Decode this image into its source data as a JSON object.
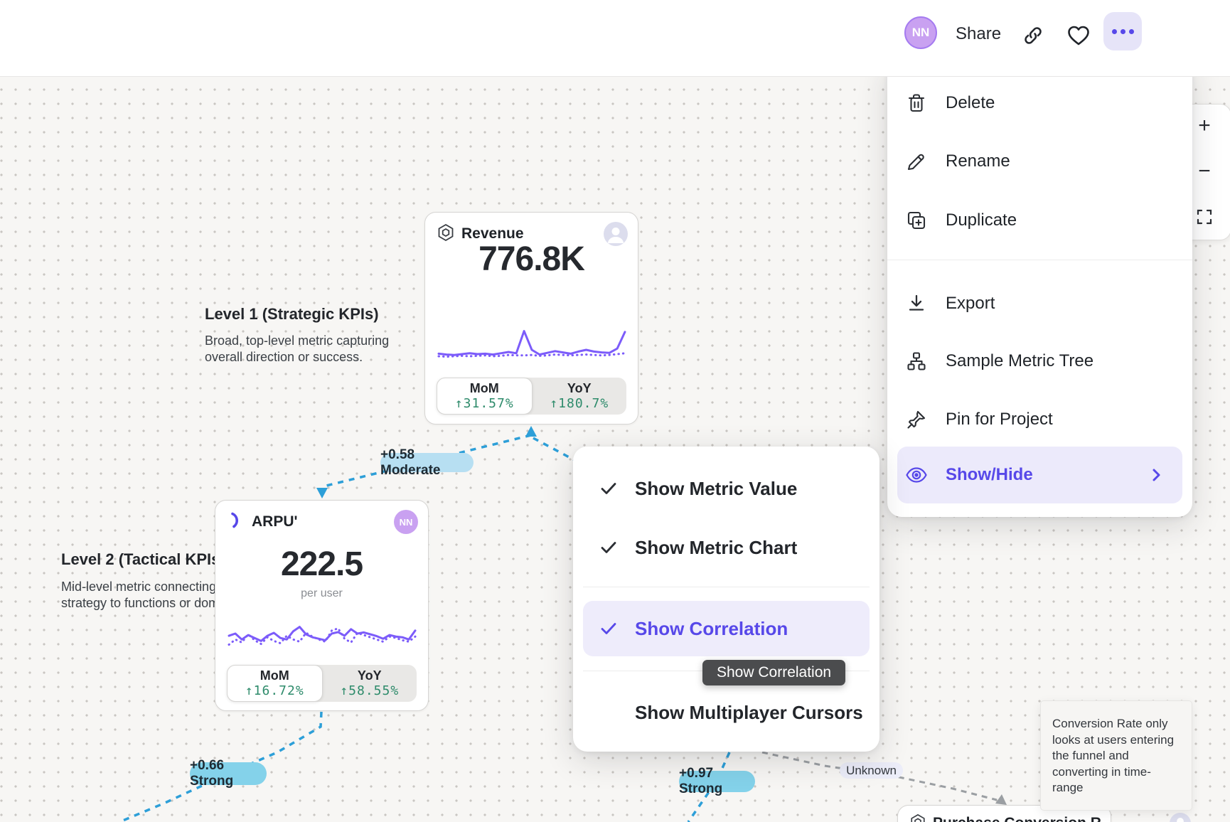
{
  "header": {
    "avatar_initials": "NN",
    "share_label": "Share"
  },
  "menu": {
    "items": [
      {
        "label": "Delete"
      },
      {
        "label": "Rename"
      },
      {
        "label": "Duplicate"
      },
      {
        "label": "Export"
      },
      {
        "label": "Sample Metric Tree"
      },
      {
        "label": "Pin for Project"
      },
      {
        "label": "Show/Hide"
      }
    ]
  },
  "submenu": {
    "items": [
      {
        "label": "Show Metric Value",
        "checked": true
      },
      {
        "label": "Show Metric Chart",
        "checked": true
      },
      {
        "label": "Show Correlation",
        "checked": true,
        "highlighted": true
      },
      {
        "label": "Show Multiplayer Cursors",
        "checked": false
      }
    ],
    "tooltip": "Show Correlation"
  },
  "canvas": {
    "levels": [
      {
        "title": "Level 1 (Strategic KPIs)",
        "desc": "Broad, top-level metric capturing\noverall direction or success."
      },
      {
        "title": "Level 2 (Tactical KPIs",
        "desc": "Mid-level metric connecting\nstrategy to functions or doma"
      }
    ],
    "cards": {
      "revenue": {
        "title": "Revenue",
        "value": "776.8K",
        "mom_label": "MoM",
        "mom_value": "↑31.57%",
        "yoy_label": "YoY",
        "yoy_value": "↑180.7%",
        "spark_solid": [
          21,
          19,
          18,
          20,
          22,
          20,
          21,
          19,
          22,
          25,
          22,
          74,
          30,
          19,
          23,
          27,
          24,
          21,
          26,
          30,
          26,
          24,
          23,
          33,
          72
        ],
        "spark_dotted": [
          15,
          14,
          15,
          16,
          15,
          16,
          17,
          15,
          16,
          18,
          17,
          17,
          18,
          16,
          17,
          19,
          18,
          17,
          18,
          19,
          18,
          17,
          18,
          20,
          22
        ]
      },
      "arpu": {
        "title": "ARPU'",
        "value": "222.5",
        "unit": "per user",
        "avatar_initials": "NN",
        "mom_label": "MoM",
        "mom_value": "↑16.72%",
        "yoy_label": "YoY",
        "yoy_value": "↑58.55%",
        "spark_solid": [
          44,
          50,
          34,
          46,
          38,
          30,
          44,
          52,
          38,
          34,
          56,
          68,
          48,
          40,
          36,
          32,
          50,
          54,
          44,
          62,
          50,
          53,
          48,
          43,
          36,
          46,
          42,
          40,
          34,
          58
        ],
        "spark_dotted": [
          20,
          34,
          26,
          48,
          32,
          22,
          40,
          30,
          24,
          44,
          34,
          28,
          52,
          42,
          34,
          28,
          58,
          64,
          36,
          26,
          52,
          46,
          40,
          34,
          28,
          42,
          38,
          32,
          28,
          42
        ]
      },
      "purchase": {
        "title": "Purchase Conversion R"
      }
    },
    "badges": [
      {
        "label": "+0.58 Moderate",
        "strength": "moderate"
      },
      {
        "label": "+0.66 Strong",
        "strength": "strong"
      },
      {
        "label": "+0.97 Strong",
        "strength": "strong"
      },
      {
        "label": "Unknown",
        "strength": "unknown"
      }
    ],
    "note": "Conversion Rate only looks at users entering the funnel and converting in time-range"
  },
  "colors": {
    "accent_purple": "#5748e9",
    "chart_purple": "#7c5cfa",
    "correlation_line": "#2d9fd8",
    "unknown_line": "#9b9fa3",
    "badge_strong": "#84d2ea",
    "badge_moderate": "#b7dff2",
    "positive_green": "#2e8b6b"
  }
}
